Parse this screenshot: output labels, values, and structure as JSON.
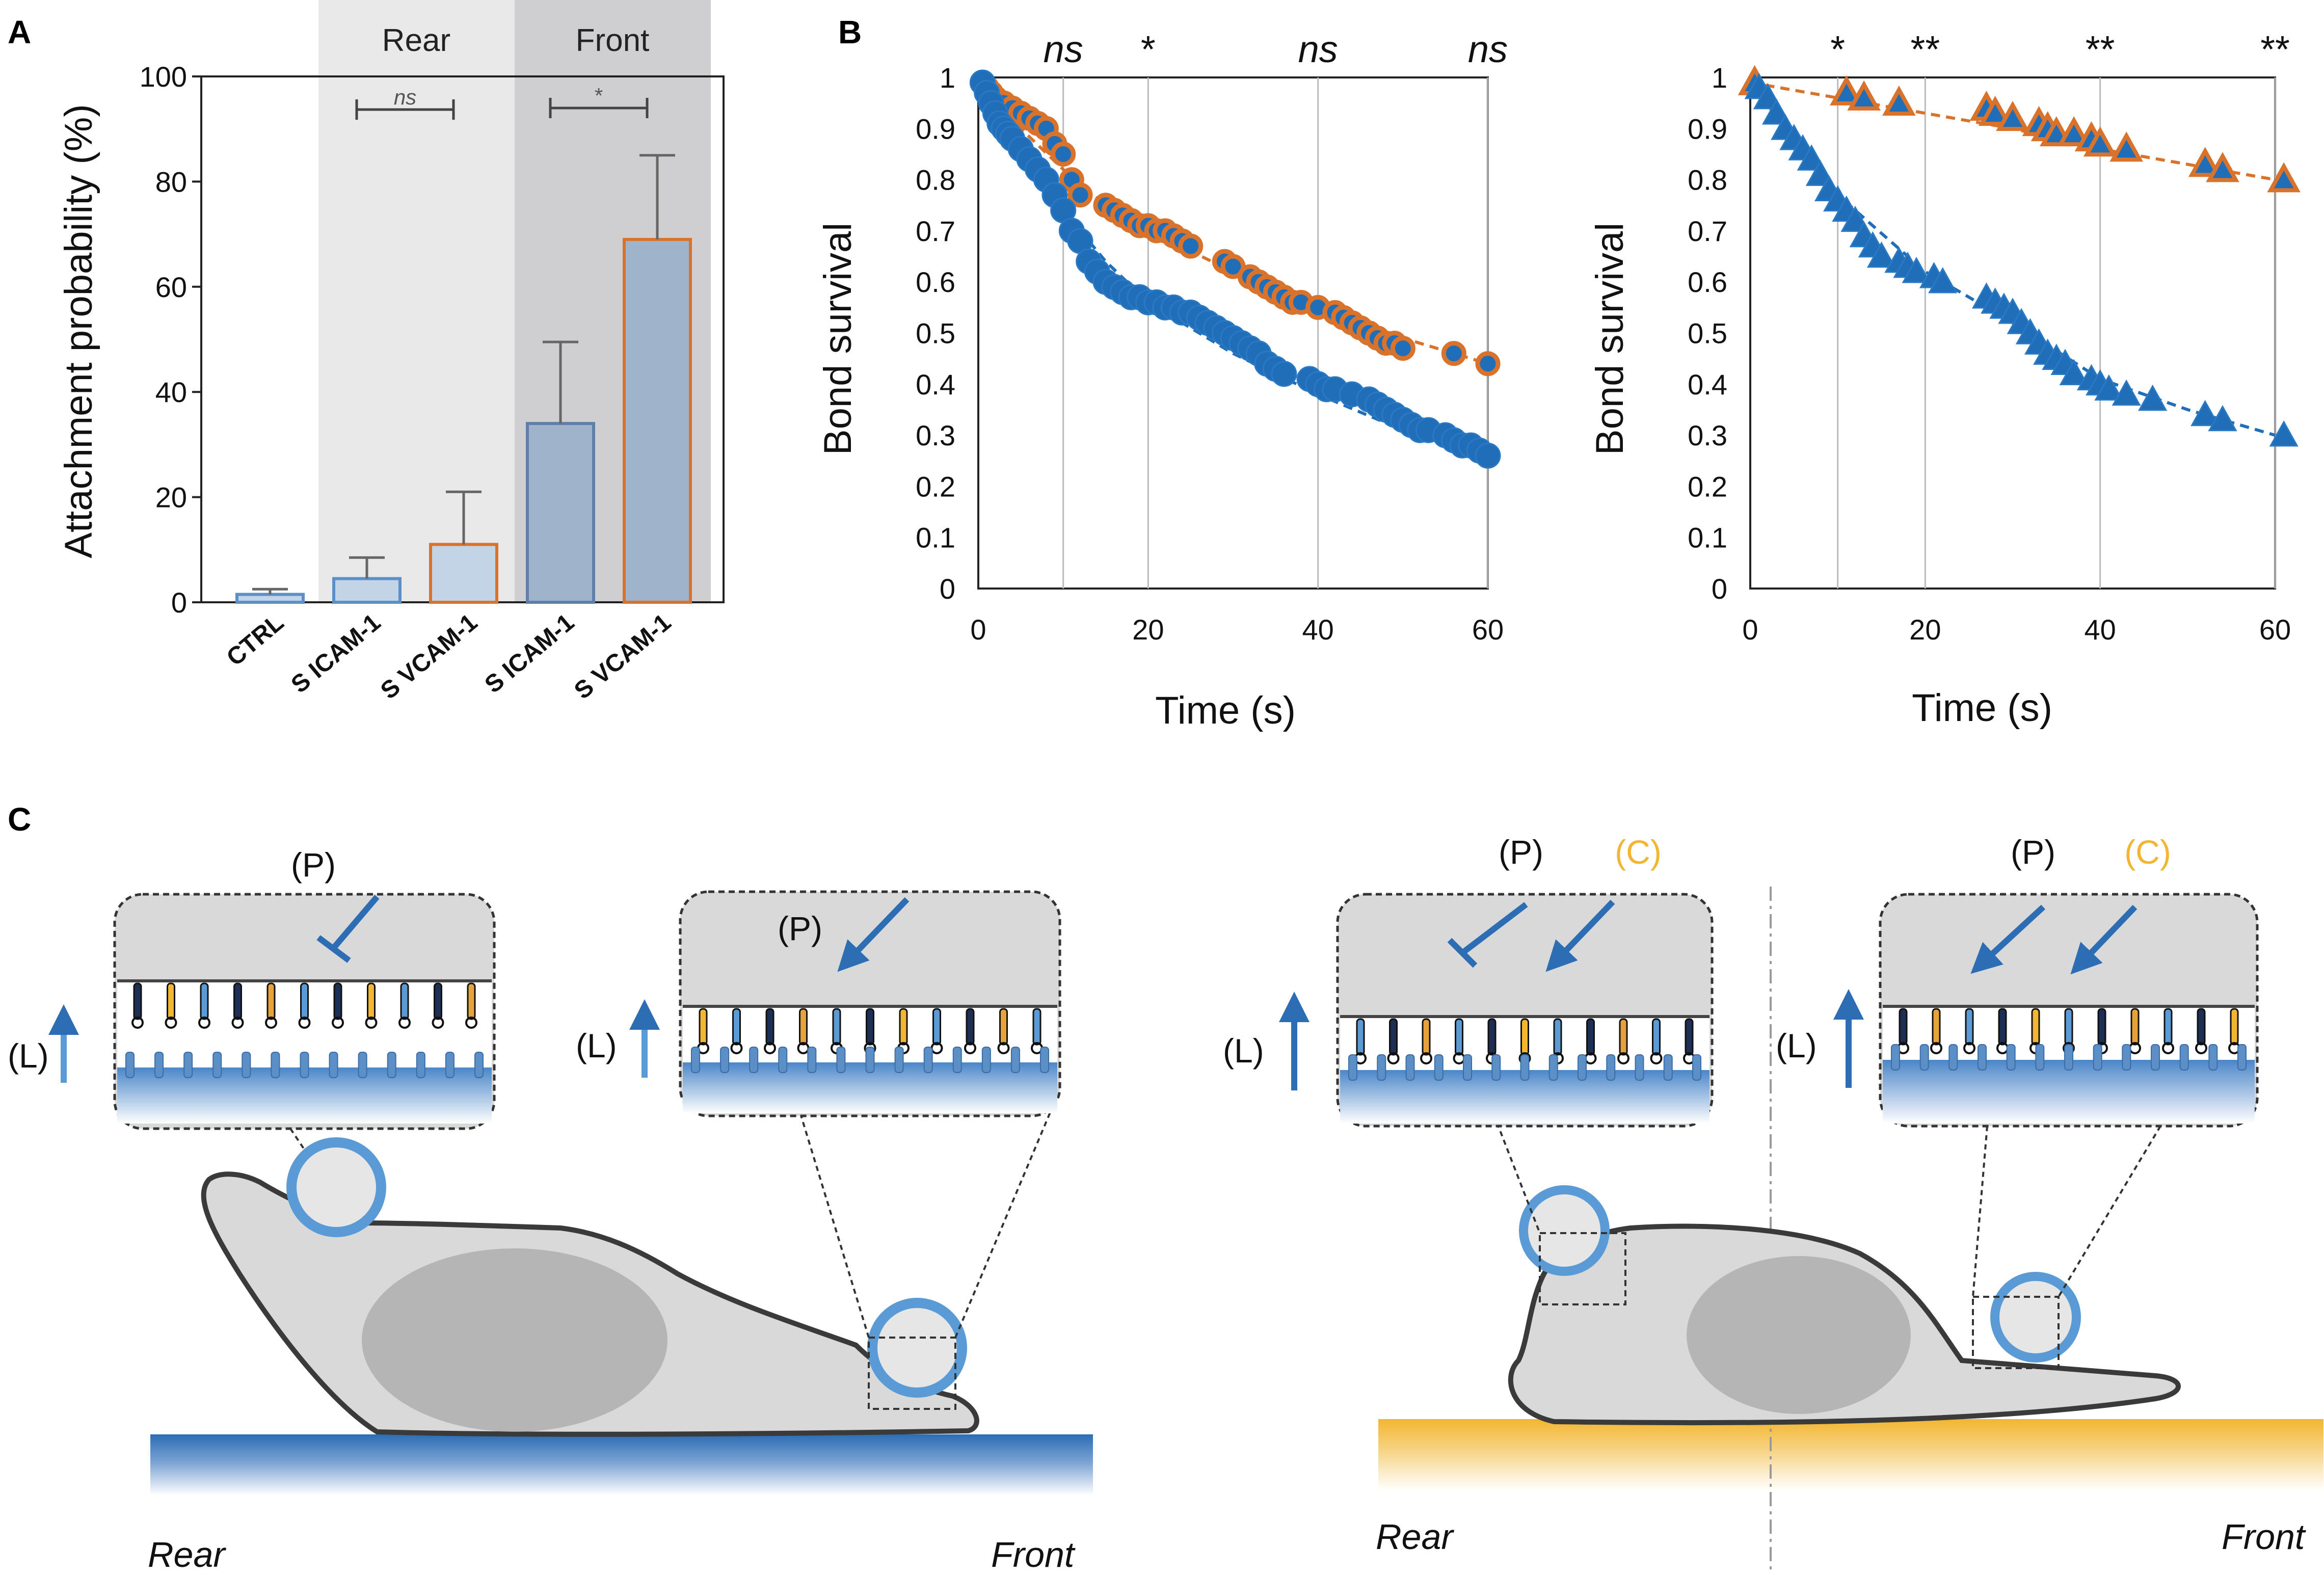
{
  "panels": {
    "a": "A",
    "b": "B",
    "c": "C"
  },
  "colors": {
    "blue": "#1f6eb7",
    "orange": "#d9722b",
    "bar_light": "#c3d4e6",
    "bar_dark": "#9fb3cb",
    "rear_shade": "#e9e9e9",
    "front_shade": "#cfcfd2",
    "substrate_blue": "#2c6db3",
    "substrate_yellow": "#f2b630",
    "cell_gray": "#d9d9d9",
    "nucleus_gray": "#a8a8a8"
  },
  "chart_data": [
    {
      "id": "A",
      "type": "bar",
      "title": "",
      "ylabel": "Attachment probability (%)",
      "ylim": [
        0,
        100
      ],
      "yticks": [
        0,
        20,
        40,
        60,
        80,
        100
      ],
      "region_labels": [
        "Rear",
        "Front"
      ],
      "categories": [
        "CTRL",
        "S ICAM-1",
        "S VCAM-1",
        "S ICAM-1",
        "S VCAM-1"
      ],
      "values": [
        1.5,
        4.5,
        11,
        34,
        69
      ],
      "errors": [
        1,
        4,
        10,
        15.5,
        16
      ],
      "region": [
        "none",
        "rear",
        "rear",
        "front",
        "front"
      ],
      "ligand": [
        "ctrl",
        "icam",
        "vcam",
        "icam",
        "vcam"
      ],
      "significance": [
        {
          "from": 1,
          "to": 2,
          "label": "ns",
          "region": "rear"
        },
        {
          "from": 3,
          "to": 4,
          "label": "*",
          "region": "front"
        }
      ]
    },
    {
      "id": "B-left",
      "type": "scatter",
      "marker": "circle",
      "xlabel": "Time (s)",
      "ylabel": "Bond survival",
      "xlim": [
        0,
        60
      ],
      "ylim": [
        0,
        1
      ],
      "xticks": [
        0,
        20,
        40,
        60
      ],
      "yticks": [
        0,
        0.1,
        0.2,
        0.3,
        0.4,
        0.5,
        0.6,
        0.7,
        0.8,
        0.9,
        1
      ],
      "ytick_labels": [
        "0",
        "0.1",
        "0.2",
        "0.3",
        "0.4",
        "0.5",
        "0.6",
        "0.7",
        "0.8",
        "0.9",
        "1"
      ],
      "vlines": [
        10,
        20,
        40,
        60
      ],
      "significance": [
        "ns",
        "*",
        "ns",
        "ns"
      ],
      "series": [
        {
          "name": "orange",
          "color": "#d9722b",
          "fit_line": [
            [
              0,
              1
            ],
            [
              5,
              0.9
            ],
            [
              10,
              0.82
            ],
            [
              15,
              0.75
            ],
            [
              20,
              0.7
            ],
            [
              30,
              0.62
            ],
            [
              40,
              0.55
            ],
            [
              50,
              0.49
            ],
            [
              60,
              0.44
            ]
          ],
          "x": [
            0.5,
            1,
            1.5,
            2,
            3,
            4,
            5,
            6,
            7,
            8,
            9,
            10,
            11,
            12,
            15,
            16,
            17,
            18,
            19,
            20,
            21,
            22,
            23,
            24,
            25,
            29,
            30,
            32,
            33,
            34,
            35,
            36,
            37,
            38,
            40,
            42,
            43,
            44,
            45,
            46,
            47,
            48,
            49,
            50,
            56,
            60
          ],
          "y": [
            0.99,
            0.98,
            0.97,
            0.96,
            0.95,
            0.94,
            0.93,
            0.92,
            0.91,
            0.9,
            0.87,
            0.85,
            0.8,
            0.77,
            0.75,
            0.74,
            0.73,
            0.72,
            0.71,
            0.71,
            0.7,
            0.7,
            0.69,
            0.68,
            0.67,
            0.64,
            0.63,
            0.61,
            0.6,
            0.59,
            0.58,
            0.57,
            0.56,
            0.56,
            0.55,
            0.54,
            0.53,
            0.52,
            0.51,
            0.5,
            0.49,
            0.48,
            0.48,
            0.47,
            0.46,
            0.44
          ]
        },
        {
          "name": "blue",
          "color": "#1f6eb7",
          "fit_line": [
            [
              0,
              1
            ],
            [
              5,
              0.86
            ],
            [
              10,
              0.74
            ],
            [
              15,
              0.64
            ],
            [
              20,
              0.56
            ],
            [
              30,
              0.46
            ],
            [
              40,
              0.38
            ],
            [
              50,
              0.31
            ],
            [
              60,
              0.26
            ]
          ],
          "x": [
            0.5,
            1,
            1.5,
            2,
            2.5,
            3,
            3.5,
            4,
            5,
            6,
            7,
            8,
            9,
            10,
            11,
            12,
            13,
            14,
            15,
            16,
            17,
            18,
            19,
            20,
            21,
            22,
            23,
            24,
            25,
            26,
            27,
            28,
            29,
            30,
            31,
            32,
            33,
            34,
            35,
            36,
            39,
            40,
            41,
            42,
            44,
            46,
            47,
            48,
            49,
            50,
            51,
            52,
            53,
            55,
            56,
            57,
            58,
            59,
            60
          ],
          "y": [
            0.99,
            0.97,
            0.95,
            0.93,
            0.91,
            0.9,
            0.89,
            0.88,
            0.86,
            0.84,
            0.82,
            0.8,
            0.77,
            0.74,
            0.7,
            0.68,
            0.64,
            0.62,
            0.6,
            0.59,
            0.58,
            0.57,
            0.57,
            0.56,
            0.56,
            0.55,
            0.55,
            0.54,
            0.54,
            0.53,
            0.52,
            0.51,
            0.5,
            0.49,
            0.48,
            0.47,
            0.46,
            0.44,
            0.43,
            0.42,
            0.41,
            0.4,
            0.39,
            0.39,
            0.38,
            0.37,
            0.36,
            0.35,
            0.34,
            0.33,
            0.32,
            0.31,
            0.31,
            0.3,
            0.29,
            0.28,
            0.28,
            0.27,
            0.26
          ]
        }
      ]
    },
    {
      "id": "B-right",
      "type": "scatter",
      "marker": "triangle",
      "xlabel": "Time (s)",
      "ylabel": "Bond survival",
      "xlim": [
        0,
        60
      ],
      "ylim": [
        0,
        1
      ],
      "xticks": [
        0,
        20,
        40,
        60
      ],
      "yticks": [
        0,
        0.1,
        0.2,
        0.3,
        0.4,
        0.5,
        0.6,
        0.7,
        0.8,
        0.9,
        1
      ],
      "ytick_labels": [
        "0",
        "0.1",
        "0.2",
        "0.3",
        "0.4",
        "0.5",
        "0.6",
        "0.7",
        "0.8",
        "0.9",
        "1"
      ],
      "vlines": [
        10,
        20,
        40,
        60
      ],
      "significance": [
        "*",
        "**",
        "**",
        "**"
      ],
      "series": [
        {
          "name": "orange",
          "color": "#d9722b",
          "fit_line": [
            [
              0,
              0.99
            ],
            [
              10,
              0.96
            ],
            [
              20,
              0.93
            ],
            [
              30,
              0.9
            ],
            [
              40,
              0.86
            ],
            [
              50,
              0.83
            ],
            [
              60,
              0.8
            ]
          ],
          "x": [
            0.5,
            11,
            13,
            17,
            27,
            28,
            30,
            33,
            34,
            35,
            37,
            39,
            40,
            43,
            52,
            54,
            61
          ],
          "y": [
            0.99,
            0.97,
            0.96,
            0.95,
            0.94,
            0.93,
            0.92,
            0.91,
            0.9,
            0.89,
            0.89,
            0.88,
            0.87,
            0.86,
            0.83,
            0.82,
            0.8
          ]
        },
        {
          "name": "blue",
          "color": "#1f6eb7",
          "fit_line": [
            [
              0,
              0.99
            ],
            [
              10,
              0.77
            ],
            [
              20,
              0.62
            ],
            [
              30,
              0.52
            ],
            [
              40,
              0.41
            ],
            [
              50,
              0.35
            ],
            [
              60,
              0.3
            ]
          ],
          "x": [
            1,
            2,
            3,
            4,
            5,
            6,
            7,
            8,
            9,
            10,
            11,
            12,
            13,
            14,
            15,
            17,
            18,
            19,
            21,
            22,
            27,
            28,
            29,
            30,
            31,
            32,
            33,
            34,
            35,
            36,
            37,
            39,
            40,
            41,
            43,
            46,
            52,
            54,
            61
          ],
          "y": [
            0.98,
            0.96,
            0.93,
            0.9,
            0.88,
            0.86,
            0.84,
            0.81,
            0.78,
            0.76,
            0.74,
            0.72,
            0.69,
            0.67,
            0.65,
            0.64,
            0.63,
            0.62,
            0.61,
            0.6,
            0.57,
            0.56,
            0.55,
            0.54,
            0.52,
            0.5,
            0.48,
            0.46,
            0.45,
            0.44,
            0.42,
            0.41,
            0.4,
            0.39,
            0.38,
            0.37,
            0.34,
            0.33,
            0.3
          ]
        }
      ]
    }
  ],
  "schematic": {
    "p_label": "(P)",
    "l_label": "(L)",
    "c_label": "(C)",
    "rear": "Rear",
    "front": "Front"
  }
}
